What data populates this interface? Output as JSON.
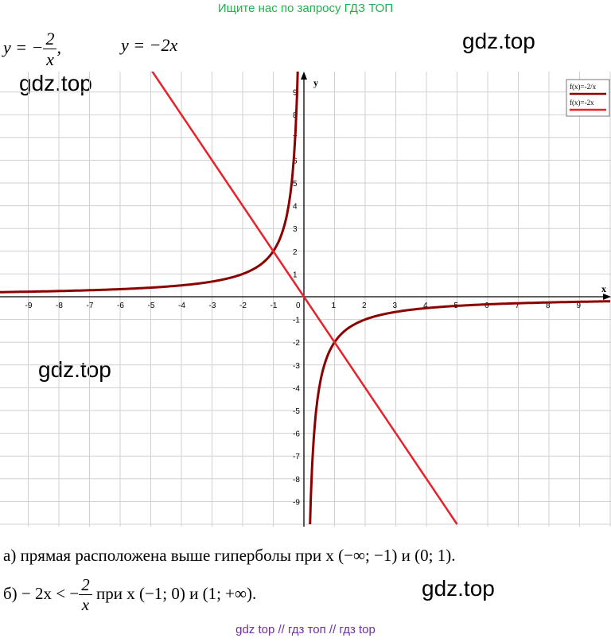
{
  "banner": "Ищите нас по запросу ГДЗ ТОП",
  "watermark": "gdz.top",
  "equation1": {
    "lhs": "y = −",
    "numerator": "2",
    "denominator": "x",
    "trail": ","
  },
  "equation2": "y = −2x",
  "graph": {
    "x_axis_label": "x",
    "y_axis_label": "y",
    "x_ticks": [
      "-9",
      "-8",
      "-7",
      "-6",
      "-5",
      "-4",
      "-3",
      "-2",
      "-1",
      "1",
      "2",
      "3",
      "4",
      "5",
      "6",
      "7",
      "8",
      "9"
    ],
    "y_ticks": [
      "9",
      "8",
      "7",
      "6",
      "5",
      "4",
      "3",
      "2",
      "1",
      "-1",
      "-2",
      "-3",
      "-4",
      "-5",
      "-6",
      "-7",
      "-8",
      "-9"
    ],
    "origin_label": "0",
    "legend": [
      "f(x)=-2/x",
      "f(x)=-2x"
    ],
    "colors": {
      "hyperbola": "#8b0000",
      "line": "#e8212a",
      "grid": "#d0d0d0"
    }
  },
  "answer_a": "а) прямая расположена выше гиперболы при x (−∞; −1) и (0; 1).",
  "answer_b": {
    "prefix": "б) − 2x < −",
    "numerator": "2",
    "denominator": "x",
    "suffix": " при x (−1; 0) и (1; +∞)."
  },
  "footer": "gdz top  //  гдз топ  //  гдз top"
}
